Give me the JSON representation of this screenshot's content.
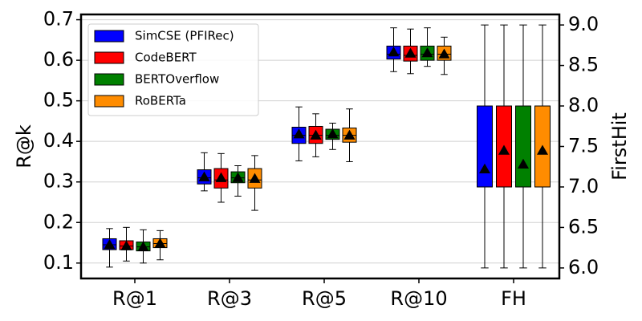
{
  "chart_data": {
    "type": "boxplot",
    "categories": [
      "R@1",
      "R@3",
      "R@5",
      "R@10",
      "FH"
    ],
    "series": [
      {
        "name": "SimCSE (PFIRec)",
        "color": "#0000ff"
      },
      {
        "name": "CodeBERT",
        "color": "#ff0000"
      },
      {
        "name": "BERTOverflow",
        "color": "#008000"
      },
      {
        "name": "RoBERTa",
        "color": "#ff8c00"
      }
    ],
    "boxes": [
      {
        "category": "R@1",
        "series": "SimCSE (PFIRec)",
        "min": 0.09,
        "q1": 0.133,
        "median": 0.145,
        "q3": 0.16,
        "max": 0.185,
        "mean": 0.145
      },
      {
        "category": "R@1",
        "series": "CodeBERT",
        "min": 0.105,
        "q1": 0.133,
        "median": 0.142,
        "q3": 0.155,
        "max": 0.188,
        "mean": 0.142
      },
      {
        "category": "R@1",
        "series": "BERTOverflow",
        "min": 0.1,
        "q1": 0.13,
        "median": 0.14,
        "q3": 0.152,
        "max": 0.182,
        "mean": 0.14
      },
      {
        "category": "R@1",
        "series": "RoBERTa",
        "min": 0.108,
        "q1": 0.138,
        "median": 0.148,
        "q3": 0.16,
        "max": 0.18,
        "mean": 0.148
      },
      {
        "category": "R@3",
        "series": "SimCSE (PFIRec)",
        "min": 0.278,
        "q1": 0.295,
        "median": 0.31,
        "q3": 0.33,
        "max": 0.372,
        "mean": 0.312
      },
      {
        "category": "R@3",
        "series": "CodeBERT",
        "min": 0.25,
        "q1": 0.285,
        "median": 0.305,
        "q3": 0.333,
        "max": 0.37,
        "mean": 0.31
      },
      {
        "category": "R@3",
        "series": "BERTOverflow",
        "min": 0.265,
        "q1": 0.298,
        "median": 0.31,
        "q3": 0.325,
        "max": 0.34,
        "mean": 0.31
      },
      {
        "category": "R@3",
        "series": "RoBERTa",
        "min": 0.23,
        "q1": 0.285,
        "median": 0.305,
        "q3": 0.333,
        "max": 0.365,
        "mean": 0.308
      },
      {
        "category": "R@5",
        "series": "SimCSE (PFIRec)",
        "min": 0.352,
        "q1": 0.395,
        "median": 0.415,
        "q3": 0.435,
        "max": 0.485,
        "mean": 0.418
      },
      {
        "category": "R@5",
        "series": "CodeBERT",
        "min": 0.362,
        "q1": 0.395,
        "median": 0.415,
        "q3": 0.437,
        "max": 0.468,
        "mean": 0.415
      },
      {
        "category": "R@5",
        "series": "BERTOverflow",
        "min": 0.38,
        "q1": 0.405,
        "median": 0.415,
        "q3": 0.43,
        "max": 0.445,
        "mean": 0.418
      },
      {
        "category": "R@5",
        "series": "RoBERTa",
        "min": 0.35,
        "q1": 0.398,
        "median": 0.415,
        "q3": 0.433,
        "max": 0.48,
        "mean": 0.415
      },
      {
        "category": "R@10",
        "series": "SimCSE (PFIRec)",
        "min": 0.572,
        "q1": 0.603,
        "median": 0.615,
        "q3": 0.635,
        "max": 0.68,
        "mean": 0.62
      },
      {
        "category": "R@10",
        "series": "CodeBERT",
        "min": 0.567,
        "q1": 0.598,
        "median": 0.612,
        "q3": 0.635,
        "max": 0.677,
        "mean": 0.617
      },
      {
        "category": "R@10",
        "series": "BERTOverflow",
        "min": 0.585,
        "q1": 0.6,
        "median": 0.615,
        "q3": 0.635,
        "max": 0.68,
        "mean": 0.618
      },
      {
        "category": "R@10",
        "series": "RoBERTa",
        "min": 0.565,
        "q1": 0.6,
        "median": 0.615,
        "q3": 0.635,
        "max": 0.657,
        "mean": 0.615
      },
      {
        "category": "FH",
        "series": "SimCSE (PFIRec)",
        "axis": "right",
        "min": 6.0,
        "q1": 7.0,
        "median": 7.0,
        "q3": 8.0,
        "max": 9.0,
        "mean": 7.22
      },
      {
        "category": "FH",
        "series": "CodeBERT",
        "axis": "right",
        "min": 6.0,
        "q1": 7.0,
        "median": 7.0,
        "q3": 8.0,
        "max": 9.0,
        "mean": 7.45
      },
      {
        "category": "FH",
        "series": "BERTOverflow",
        "axis": "right",
        "min": 6.0,
        "q1": 7.0,
        "median": 7.0,
        "q3": 8.0,
        "max": 9.0,
        "mean": 7.28
      },
      {
        "category": "FH",
        "series": "RoBERTa",
        "axis": "right",
        "min": 6.0,
        "q1": 7.0,
        "median": 7.0,
        "q3": 8.0,
        "max": 9.0,
        "mean": 7.45
      }
    ],
    "ylabel": "R@k",
    "ylabel_right": "FirstHit",
    "ylim": [
      0.062,
      0.713
    ],
    "ylim_right": [
      5.87,
      9.13
    ],
    "yticks": [
      "0.1",
      "0.2",
      "0.3",
      "0.4",
      "0.5",
      "0.6",
      "0.7"
    ],
    "yticks_right": [
      "6.0",
      "6.5",
      "7.0",
      "7.5",
      "8.0",
      "8.5",
      "9.0"
    ],
    "grid": "horizontal",
    "legend_position": "top-left"
  }
}
